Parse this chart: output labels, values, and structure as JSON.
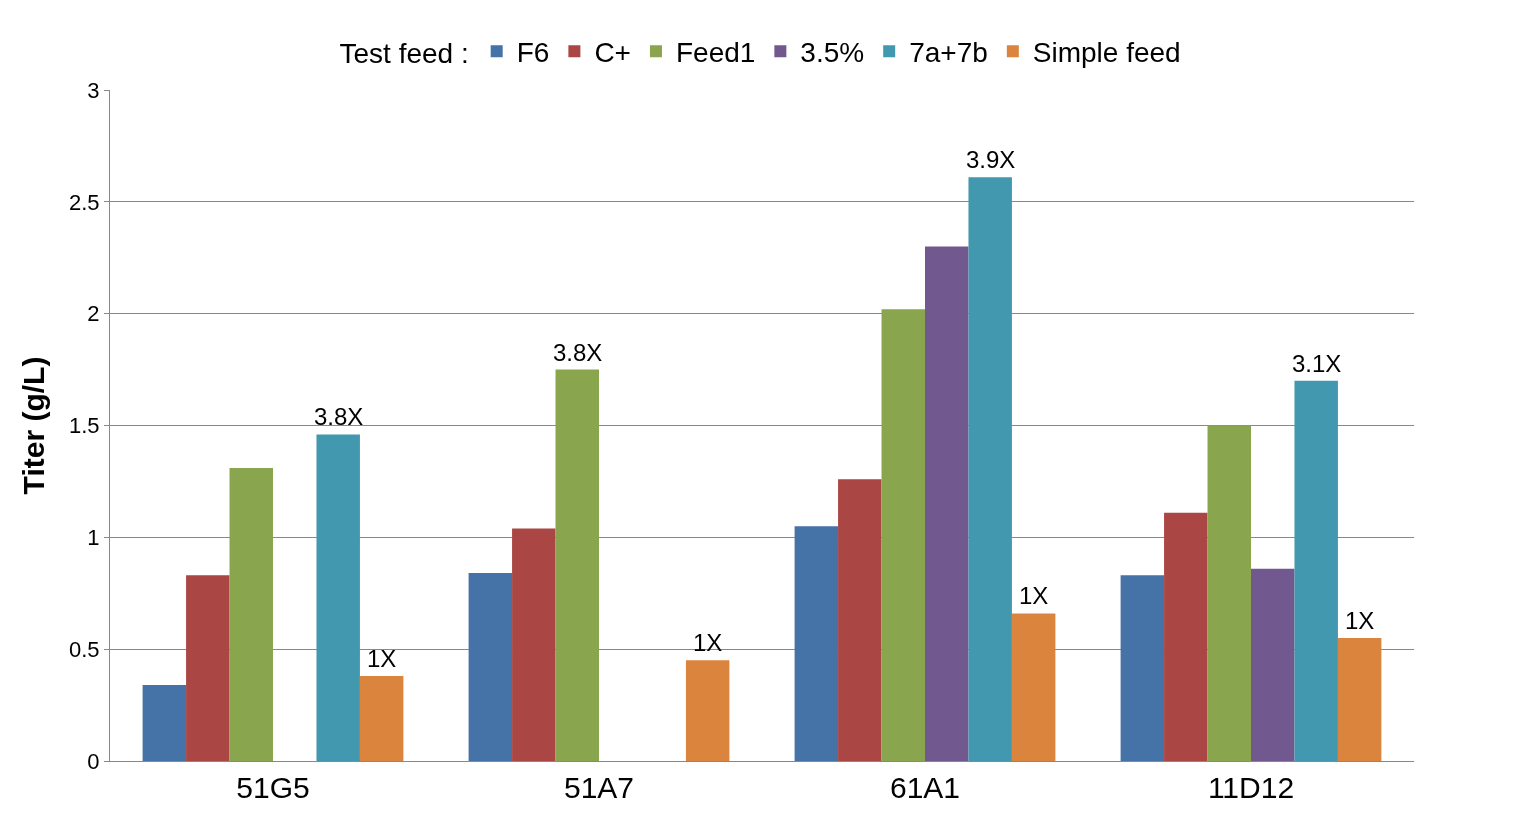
{
  "chart_data": {
    "type": "bar",
    "ylabel": "Titer (g/L)",
    "legend_title": "Test feed :",
    "legend": "top",
    "categories": [
      "51G5",
      "51A7",
      "61A1",
      "11D12"
    ],
    "series": [
      {
        "name": "F6",
        "color": "#4572a7",
        "values": [
          0.34,
          0.84,
          1.05,
          0.83
        ]
      },
      {
        "name": "C+",
        "color": "#aa4643",
        "values": [
          0.83,
          1.04,
          1.26,
          1.11
        ]
      },
      {
        "name": "Feed1",
        "color": "#89a54e",
        "values": [
          1.31,
          1.75,
          2.02,
          1.5
        ]
      },
      {
        "name": "3.5%",
        "color": "#71588f",
        "values": [
          null,
          null,
          2.3,
          0.86
        ]
      },
      {
        "name": "7a+7b",
        "color": "#4198af",
        "values": [
          1.46,
          null,
          2.61,
          1.7
        ]
      },
      {
        "name": "Simple feed",
        "color": "#db843d",
        "values": [
          0.38,
          0.45,
          0.66,
          0.55
        ]
      }
    ],
    "annotations": [
      "3.8X",
      "1X",
      "3.8X",
      "1X",
      "3.9X",
      "1X",
      "3.1X",
      "1X"
    ],
    "ylim": [
      0,
      3
    ],
    "yticks": [
      0,
      0.5,
      1,
      1.5,
      2,
      2.5,
      3
    ],
    "grid": "y"
  }
}
